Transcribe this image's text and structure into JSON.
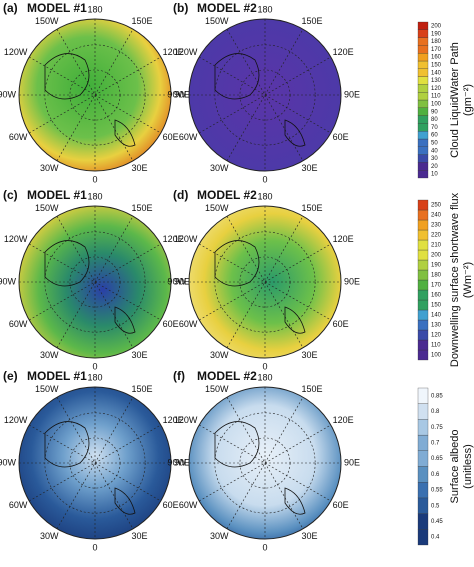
{
  "panels": [
    {
      "label": "(a)",
      "title": "MODEL #1"
    },
    {
      "label": "(b)",
      "title": "MODEL #2"
    },
    {
      "label": "(c)",
      "title": "MODEL #1"
    },
    {
      "label": "(d)",
      "title": "MODEL #2"
    },
    {
      "label": "(e)",
      "title": "MODEL #1"
    },
    {
      "label": "(f)",
      "title": "MODEL #2"
    }
  ],
  "lon_labels": [
    "180",
    "150E",
    "120E",
    "90E",
    "60E",
    "30E",
    "0",
    "30W",
    "60W",
    "90W",
    "120W",
    "150W"
  ],
  "colorbars": [
    {
      "label": "Cloud LiquidWater Path",
      "unit": "(gm⁻²)",
      "ticks": [
        10,
        20,
        30,
        40,
        50,
        60,
        70,
        80,
        90,
        100,
        110,
        120,
        130,
        140,
        150,
        160,
        170,
        180,
        190,
        200
      ]
    },
    {
      "label": "Downwelling surface shortwave flux",
      "unit": "(Wm⁻²)",
      "ticks": [
        100,
        110,
        120,
        130,
        140,
        150,
        160,
        170,
        180,
        190,
        200,
        210,
        220,
        230,
        240,
        250
      ]
    },
    {
      "label": "Surface albedo",
      "unit": "(unitless)",
      "ticks": [
        0.4,
        0.45,
        0.5,
        0.55,
        0.6,
        0.65,
        0.7,
        0.75,
        0.8,
        0.85
      ]
    }
  ]
}
